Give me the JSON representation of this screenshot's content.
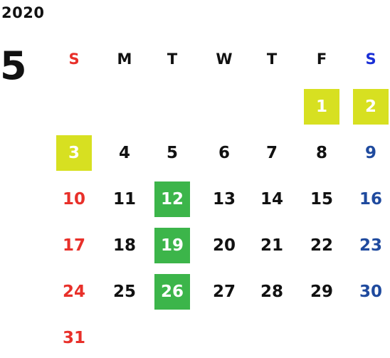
{
  "calendar": {
    "year": "2020",
    "month": "5",
    "weekday_colors": {
      "sun": "#e8302a",
      "sat_header": "#1a2fd6",
      "sat_days": "#1f4a9e",
      "default": "#111111"
    },
    "highlight_colors": {
      "yellow": "#d7e021",
      "green": "#3cb54a"
    },
    "weekdays": [
      {
        "label": "S",
        "color": "#e8302a"
      },
      {
        "label": "M",
        "color": "#111111"
      },
      {
        "label": "T",
        "color": "#111111"
      },
      {
        "label": "W",
        "color": "#111111"
      },
      {
        "label": "T",
        "color": "#111111"
      },
      {
        "label": "F",
        "color": "#111111"
      },
      {
        "label": "S",
        "color": "#1a2fd6"
      }
    ],
    "weeks": [
      [
        null,
        null,
        null,
        null,
        null,
        {
          "day": "1",
          "hl": "yellow"
        },
        {
          "day": "2",
          "hl": "yellow"
        }
      ],
      [
        {
          "day": "3",
          "hl": "yellow"
        },
        {
          "day": "4"
        },
        {
          "day": "5"
        },
        {
          "day": "6"
        },
        {
          "day": "7"
        },
        {
          "day": "8"
        },
        {
          "day": "9"
        }
      ],
      [
        {
          "day": "10"
        },
        {
          "day": "11"
        },
        {
          "day": "12",
          "hl": "green"
        },
        {
          "day": "13"
        },
        {
          "day": "14"
        },
        {
          "day": "15"
        },
        {
          "day": "16"
        }
      ],
      [
        {
          "day": "17"
        },
        {
          "day": "18"
        },
        {
          "day": "19",
          "hl": "green"
        },
        {
          "day": "20"
        },
        {
          "day": "21"
        },
        {
          "day": "22"
        },
        {
          "day": "23"
        }
      ],
      [
        {
          "day": "24"
        },
        {
          "day": "25"
        },
        {
          "day": "26",
          "hl": "green"
        },
        {
          "day": "27"
        },
        {
          "day": "28"
        },
        {
          "day": "29"
        },
        {
          "day": "30"
        }
      ],
      [
        {
          "day": "31"
        },
        null,
        null,
        null,
        null,
        null,
        null
      ]
    ]
  }
}
